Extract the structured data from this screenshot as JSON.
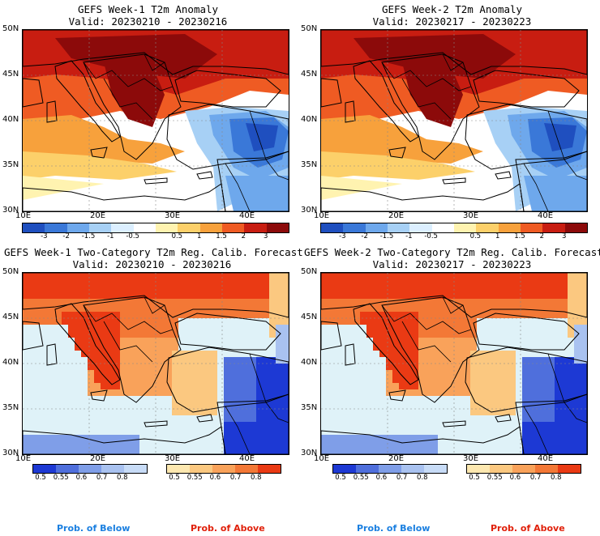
{
  "panels": [
    {
      "id": "p1",
      "title1": "GEFS Week-1 T2m Anomaly",
      "title2": "Valid: 20230210 - 20230216",
      "kind": "anomaly"
    },
    {
      "id": "p2",
      "title1": "GEFS Week-2 T2m Anomaly",
      "title2": "Valid: 20230217 - 20230223",
      "kind": "anomaly"
    },
    {
      "id": "p3",
      "title1": "GEFS Week-1 Two-Category T2m Reg. Calib. Forecast",
      "title2": "Valid: 20230210 - 20230216",
      "kind": "prob"
    },
    {
      "id": "p4",
      "title1": "GEFS Week-2 Two-Category T2m Reg. Calib. Forecast",
      "title2": "Valid: 20230217 - 20230223",
      "kind": "prob"
    }
  ],
  "axes": {
    "lat_labels": [
      "50N",
      "45N",
      "40N",
      "35N",
      "30N"
    ],
    "lon_labels": [
      "10E",
      "20E",
      "30E",
      "40E"
    ]
  },
  "anomaly_scale": {
    "ticks": [
      "-3",
      "-2",
      "-1.5",
      "-1",
      "-0.5",
      "0.5",
      "1",
      "1.5",
      "2",
      "3"
    ],
    "colors": [
      "#1f4fbf",
      "#3a78d8",
      "#6ea8ec",
      "#a7d0f5",
      "#dcefff",
      "#ffffff",
      "#fff3b0",
      "#fcd06a",
      "#f7a13c",
      "#ef5b23",
      "#c81d11",
      "#8c0a0a"
    ]
  },
  "prob_scale": {
    "ticks": [
      "0.5",
      "0.55",
      "0.6",
      "0.7",
      "0.8"
    ],
    "below_colors": [
      "#c8dcf7",
      "#a9c2f0",
      "#7f9ee8",
      "#4f6fdc",
      "#1d39d4"
    ],
    "above_colors": [
      "#fde8b0",
      "#fbc880",
      "#f9a25a",
      "#f37836",
      "#ea3a14"
    ],
    "below_label": "Prob. of Below",
    "above_label": "Prob. of Above",
    "below_color": "#1a7fe0",
    "above_color": "#e0200a"
  }
}
